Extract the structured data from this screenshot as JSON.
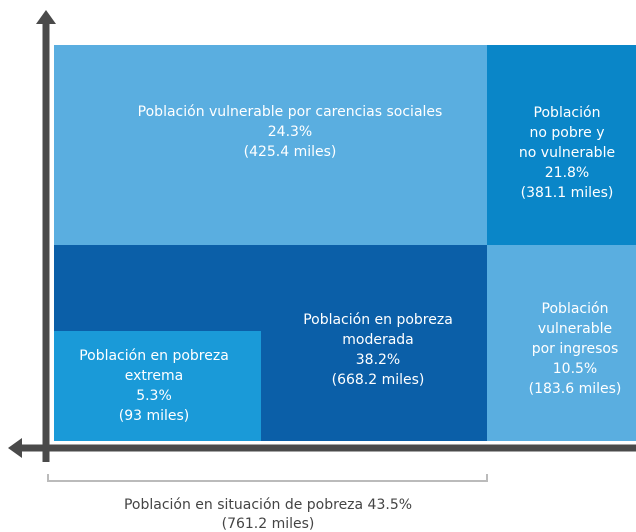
{
  "regions": [
    {
      "lines": [
        "Población vulnerable por carencias sociales",
        "24.3%",
        "(425.4 miles)"
      ]
    },
    {
      "lines": [
        "Población",
        "no pobre y",
        "no vulnerable",
        "21.8%",
        "(381.1 miles)"
      ]
    },
    {
      "lines": [
        "Población en pobreza",
        "moderada",
        "38.2%",
        "(668.2 miles)"
      ]
    },
    {
      "lines": [
        "Población en pobreza",
        "extrema",
        "5.3%",
        "(93 miles)"
      ]
    },
    {
      "lines": [
        "Población",
        "vulnerable",
        "por ingresos",
        "10.5%",
        "(183.6 miles)"
      ]
    }
  ],
  "caption": [
    "Población en situación de pobreza 43.5%",
    "(761.2 miles)"
  ]
}
